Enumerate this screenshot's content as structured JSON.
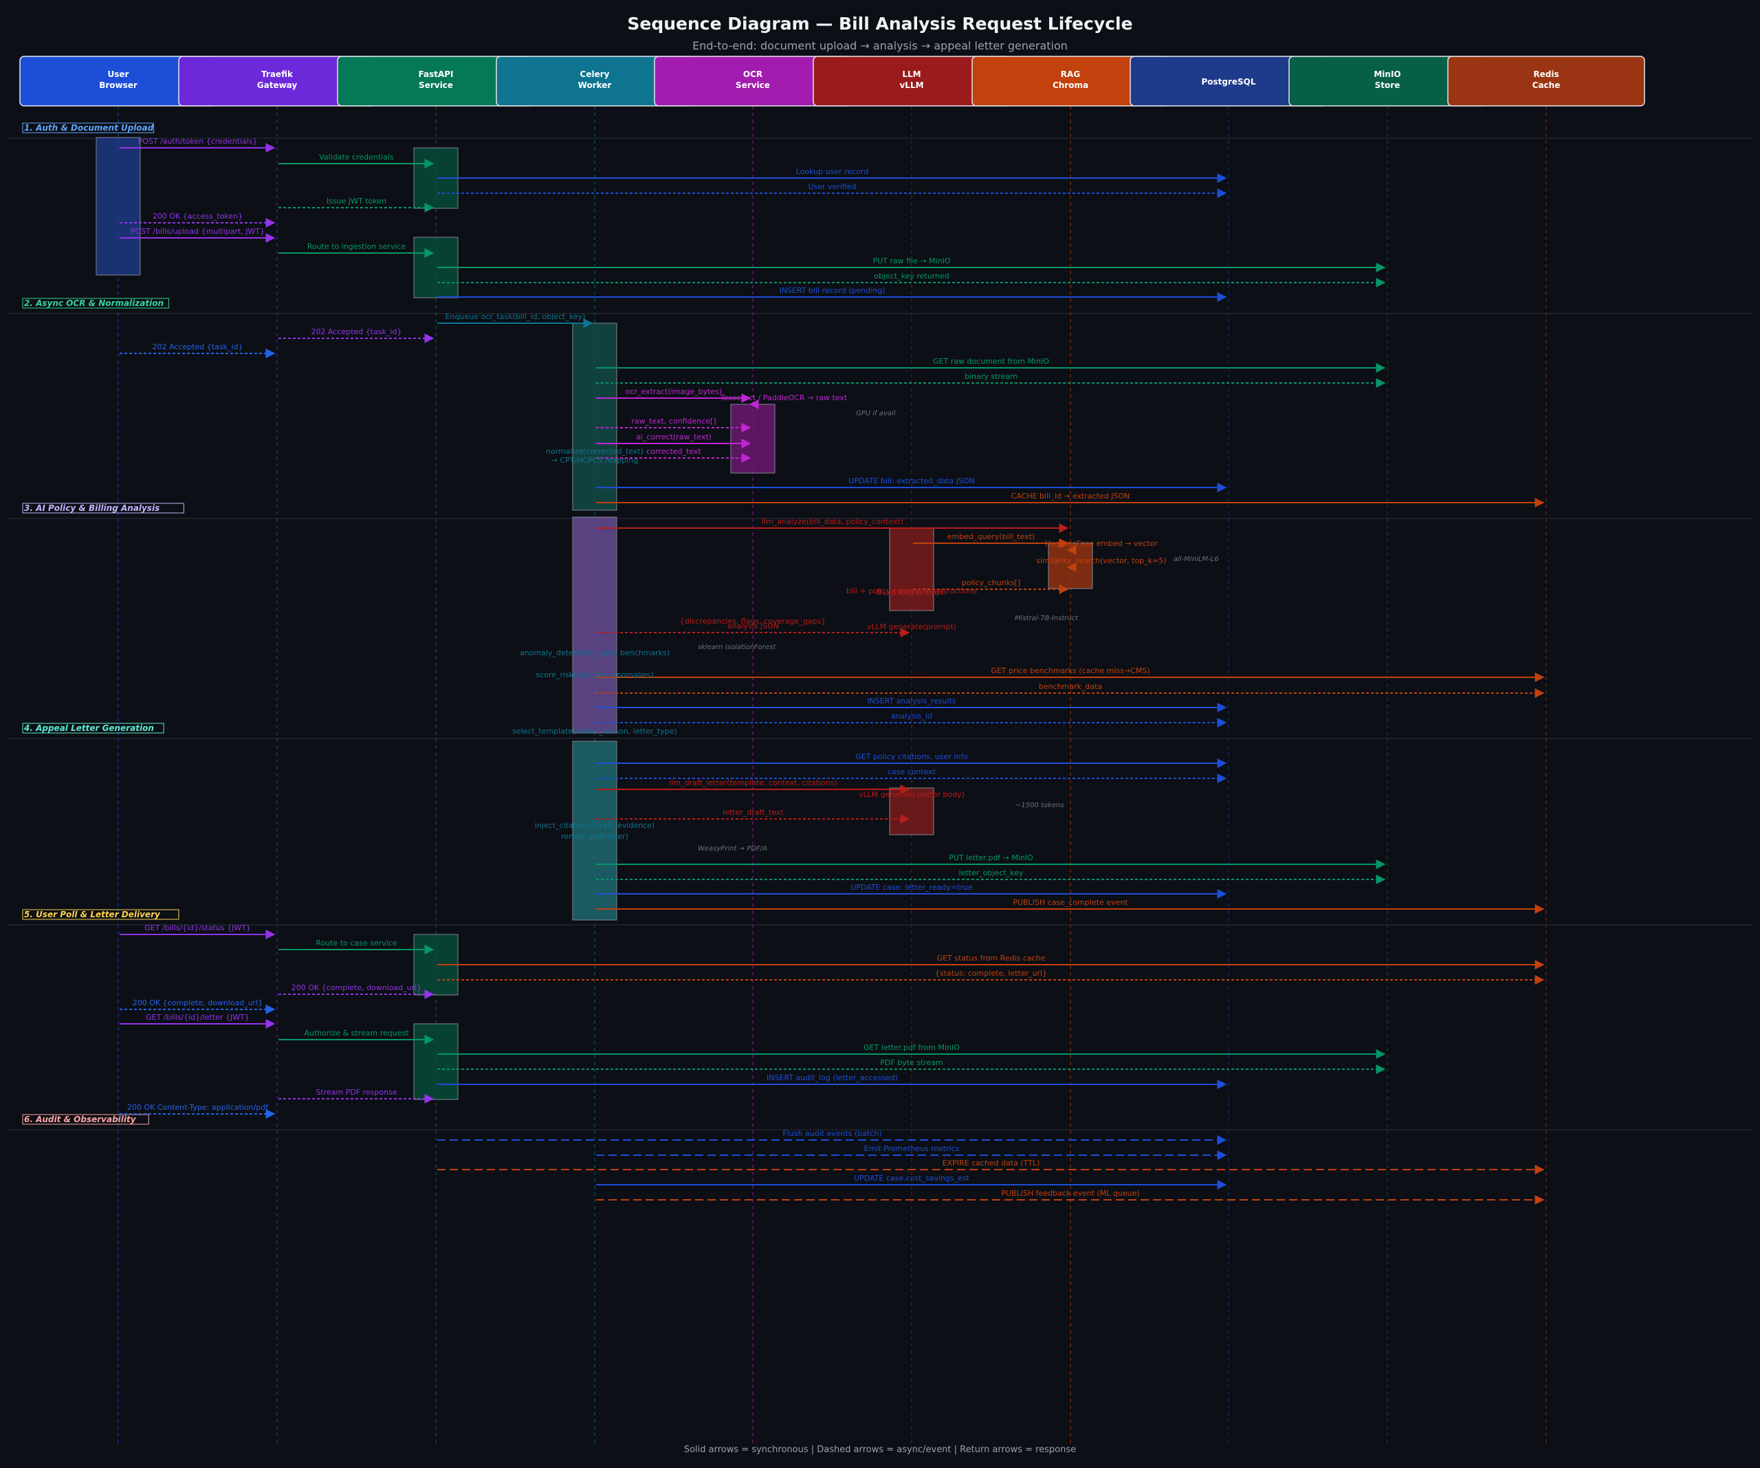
{
  "title": "Sequence Diagram — Bill Analysis Request Lifecycle",
  "subtitle": "End-to-end: document upload → analysis → appeal letter generation",
  "legend": "Solid arrows = synchronous  |  Dashed arrows = async/event  |  Return arrows = response",
  "participants": [
    {
      "id": "user",
      "lines": [
        "User",
        "Browser"
      ],
      "color": "#1d4ed8"
    },
    {
      "id": "traefik",
      "lines": [
        "Traefik",
        "Gateway"
      ],
      "color": "#6d28d9"
    },
    {
      "id": "fastapi",
      "lines": [
        "FastAPI",
        "Service"
      ],
      "color": "#047857"
    },
    {
      "id": "celery",
      "lines": [
        "Celery",
        "Worker"
      ],
      "color": "#0e7490"
    },
    {
      "id": "ocr",
      "lines": [
        "OCR",
        "Service"
      ],
      "color": "#a21caf"
    },
    {
      "id": "llm",
      "lines": [
        "LLM",
        "vLLM"
      ],
      "color": "#991b1b"
    },
    {
      "id": "rag",
      "lines": [
        "RAG",
        "Chroma"
      ],
      "color": "#c2410c"
    },
    {
      "id": "pg",
      "lines": [
        "PostgreSQL"
      ],
      "color": "#1e3a8a"
    },
    {
      "id": "minio",
      "lines": [
        "MinIO",
        "Store"
      ],
      "color": "#065f46"
    },
    {
      "id": "redis",
      "lines": [
        "Redis",
        "Cache"
      ],
      "color": "#9a3412"
    }
  ],
  "sections": [
    {
      "label": "1. Auth & Document Upload",
      "color": "#60a5fa"
    },
    {
      "label": "2. Async OCR & Normalization",
      "color": "#34d399"
    },
    {
      "label": "3. AI Policy & Billing Analysis",
      "color": "#c4b5fd"
    },
    {
      "label": "4. Appeal Letter Generation",
      "color": "#5eead4"
    },
    {
      "label": "5. User Poll & Letter Delivery",
      "color": "#fcd34d"
    },
    {
      "label": "6. Audit & Observability",
      "color": "#fca5a5"
    }
  ],
  "messages": [
    {
      "from": "user",
      "to": "traefik",
      "label": "POST /auth/token  {credentials}",
      "style": "solid",
      "color": "#9333ea"
    },
    {
      "from": "traefik",
      "to": "fastapi",
      "label": "Validate credentials",
      "style": "solid",
      "color": "#059669"
    },
    {
      "from": "fastapi",
      "to": "pg",
      "label": "Lookup user record",
      "style": "solid",
      "color": "#1d4ed8"
    },
    {
      "from": "fastapi",
      "to": "pg",
      "label": "User verified",
      "style": "dashed",
      "color": "#1d4ed8"
    },
    {
      "from": "traefik",
      "to": "fastapi",
      "label": "Issue JWT token",
      "style": "dashed",
      "color": "#059669"
    },
    {
      "from": "user",
      "to": "traefik",
      "label": "200 OK  {access_token}",
      "style": "dashed",
      "color": "#9333ea"
    },
    {
      "from": "user",
      "to": "traefik",
      "label": "POST /bills/upload  {multipart, JWT}",
      "style": "solid",
      "color": "#9333ea"
    },
    {
      "from": "traefik",
      "to": "fastapi",
      "label": "Route to ingestion service",
      "style": "solid",
      "color": "#059669"
    },
    {
      "from": "fastapi",
      "to": "minio",
      "label": "PUT raw file → MinIO",
      "style": "solid",
      "color": "#059669"
    },
    {
      "from": "fastapi",
      "to": "minio",
      "label": "object_key returned",
      "style": "dashed",
      "color": "#059669"
    },
    {
      "from": "fastapi",
      "to": "pg",
      "label": "INSERT bill record (pending)",
      "style": "solid",
      "color": "#1d4ed8"
    },
    {
      "from": "fastapi",
      "to": "celery",
      "label": "Enqueue ocr_task(bill_id, object_key)",
      "style": "solid",
      "color": "#0e7490"
    },
    {
      "from": "traefik",
      "to": "fastapi",
      "label": "202 Accepted  {task_id}",
      "style": "dashed",
      "color": "#9333ea"
    },
    {
      "from": "user",
      "to": "traefik",
      "label": "202 Accepted  {task_id}",
      "style": "dashed",
      "color": "#2563eb"
    },
    {
      "from": "celery",
      "to": "minio",
      "label": "GET raw document from MinIO",
      "style": "solid",
      "color": "#059669"
    },
    {
      "from": "celery",
      "to": "minio",
      "label": "binary stream",
      "style": "dashed",
      "color": "#059669"
    },
    {
      "from": "celery",
      "to": "ocr",
      "label": "ocr_extract(image_bytes)",
      "style": "solid",
      "color": "#c026d3"
    },
    {
      "from": "ocr",
      "to": "ocr",
      "label": "Tesseract / PaddleOCR → raw text",
      "style": "solid",
      "color": "#c026d3"
    },
    {
      "from": "celery",
      "to": "ocr",
      "label": "raw_text, confidence[]",
      "style": "dashed",
      "color": "#c026d3"
    },
    {
      "from": "celery",
      "to": "ocr",
      "label": "ai_correct(raw_text)",
      "style": "solid",
      "color": "#c026d3"
    },
    {
      "from": "celery",
      "to": "ocr",
      "label": "corrected_text",
      "style": "dashed",
      "color": "#c026d3"
    },
    {
      "from": "celery",
      "to": "celery",
      "label": "normalize(corrected_text)",
      "style": "self",
      "color": "#0e7490"
    },
    {
      "from": "celery",
      "to": "pg",
      "label": "UPDATE bill: extracted_data JSON",
      "style": "solid",
      "color": "#1d4ed8"
    },
    {
      "from": "celery",
      "to": "redis",
      "label": "CACHE bill_id → extracted JSON",
      "style": "solid",
      "color": "#c2410c"
    },
    {
      "from": "celery",
      "to": "rag",
      "label": "llm_analyze(bill_data, policy_context)",
      "style": "solid",
      "color": "#b91c1c"
    },
    {
      "from": "llm",
      "to": "rag",
      "label": "embed_query(bill_text)",
      "style": "solid",
      "color": "#c2410c"
    },
    {
      "from": "rag",
      "to": "rag",
      "label": "HuggingFace embed → vector",
      "style": "solid",
      "color": "#c2410c"
    },
    {
      "from": "rag",
      "to": "rag",
      "label": "similarity_search(vector, top_k=5)",
      "style": "solid",
      "color": "#c2410c"
    },
    {
      "from": "llm",
      "to": "rag",
      "label": "policy_chunks[]",
      "style": "dashed",
      "color": "#c2410c"
    },
    {
      "from": "llm",
      "to": "llm",
      "label": "Build RAG prompt:",
      "style": "self",
      "color": "#b91c1c"
    },
    {
      "from": "llm",
      "to": "llm",
      "label": "vLLM generate(prompt)",
      "style": "self",
      "color": "#b91c1c"
    },
    {
      "from": "celery",
      "to": "llm",
      "label": "analysis JSON",
      "style": "dashed",
      "color": "#b91c1c"
    },
    {
      "from": "celery",
      "to": "celery",
      "label": "anomaly_detect(bill_data, benchmarks)",
      "style": "self",
      "color": "#0e7490"
    },
    {
      "from": "celery",
      "to": "redis",
      "label": "GET price benchmarks (cache miss→CMS)",
      "style": "solid",
      "color": "#c2410c"
    },
    {
      "from": "celery",
      "to": "redis",
      "label": "benchmark_data",
      "style": "dashed",
      "color": "#c2410c"
    },
    {
      "from": "celery",
      "to": "celery",
      "label": "score_risk(analysis, anomalies)",
      "style": "self",
      "color": "#0e7490"
    },
    {
      "from": "celery",
      "to": "pg",
      "label": "INSERT analysis_results",
      "style": "solid",
      "color": "#1d4ed8"
    },
    {
      "from": "celery",
      "to": "pg",
      "label": "analysis_id",
      "style": "dashed",
      "color": "#1d4ed8"
    },
    {
      "from": "celery",
      "to": "celery",
      "label": "select_template(denial_reason, letter_type)",
      "style": "self",
      "color": "#0e7490"
    },
    {
      "from": "celery",
      "to": "pg",
      "label": "GET policy citations, user info",
      "style": "solid",
      "color": "#1d4ed8"
    },
    {
      "from": "celery",
      "to": "pg",
      "label": "case context",
      "style": "dashed",
      "color": "#1d4ed8"
    },
    {
      "from": "celery",
      "to": "llm",
      "label": "llm_draft_letter(template, context, citations)",
      "style": "solid",
      "color": "#b91c1c"
    },
    {
      "from": "llm",
      "to": "llm",
      "label": "vLLM generate (letter body)",
      "style": "self",
      "color": "#b91c1c"
    },
    {
      "from": "celery",
      "to": "llm",
      "label": "letter_draft_text",
      "style": "dashed",
      "color": "#b91c1c"
    },
    {
      "from": "celery",
      "to": "celery",
      "label": "inject_citations(draft, evidence)",
      "style": "self",
      "color": "#0e7490"
    },
    {
      "from": "celery",
      "to": "celery",
      "label": "render_pdf(letter)",
      "style": "self",
      "color": "#0e7490"
    },
    {
      "from": "celery",
      "to": "minio",
      "label": "PUT letter.pdf → MinIO",
      "style": "solid",
      "color": "#059669"
    },
    {
      "from": "celery",
      "to": "minio",
      "label": "letter_object_key",
      "style": "dashed",
      "color": "#059669"
    },
    {
      "from": "celery",
      "to": "pg",
      "label": "UPDATE case: letter_ready=true",
      "style": "solid",
      "color": "#1d4ed8"
    },
    {
      "from": "celery",
      "to": "redis",
      "label": "PUBLISH case_complete event",
      "style": "solid",
      "color": "#c2410c"
    },
    {
      "from": "user",
      "to": "traefik",
      "label": "GET /bills/{id}/status  {JWT}",
      "style": "solid",
      "color": "#9333ea"
    },
    {
      "from": "traefik",
      "to": "fastapi",
      "label": "Route to case service",
      "style": "solid",
      "color": "#059669"
    },
    {
      "from": "fastapi",
      "to": "redis",
      "label": "GET status from Redis cache",
      "style": "solid",
      "color": "#c2410c"
    },
    {
      "from": "fastapi",
      "to": "redis",
      "label": "{status: complete, letter_url}",
      "style": "dashed",
      "color": "#c2410c"
    },
    {
      "from": "traefik",
      "to": "fastapi",
      "label": "200 OK  {complete, download_url}",
      "style": "dashed",
      "color": "#9333ea"
    },
    {
      "from": "user",
      "to": "traefik",
      "label": "200 OK  {complete, download_url}",
      "style": "dashed",
      "color": "#2563eb"
    },
    {
      "from": "user",
      "to": "traefik",
      "label": "GET /bills/{id}/letter  {JWT}",
      "style": "solid",
      "color": "#9333ea"
    },
    {
      "from": "traefik",
      "to": "fastapi",
      "label": "Authorize & stream request",
      "style": "solid",
      "color": "#059669"
    },
    {
      "from": "fastapi",
      "to": "minio",
      "label": "GET letter.pdf from MinIO",
      "style": "solid",
      "color": "#059669"
    },
    {
      "from": "fastapi",
      "to": "minio",
      "label": "PDF byte stream",
      "style": "dashed",
      "color": "#059669"
    },
    {
      "from": "fastapi",
      "to": "pg",
      "label": "INSERT audit_log (letter_accessed)",
      "style": "solid",
      "color": "#1d4ed8"
    },
    {
      "from": "traefik",
      "to": "fastapi",
      "label": "Stream PDF response",
      "style": "dashed",
      "color": "#9333ea"
    },
    {
      "from": "user",
      "to": "traefik",
      "label": "200 OK  Content-Type: application/pdf",
      "style": "dashed",
      "color": "#2563eb"
    },
    {
      "from": "fastapi",
      "to": "pg",
      "label": "Flush audit events (batch)",
      "style": "async",
      "color": "#1d4ed8"
    },
    {
      "from": "celery",
      "to": "pg",
      "label": "Emit Prometheus metrics",
      "style": "async",
      "color": "#1d4ed8"
    },
    {
      "from": "fastapi",
      "to": "redis",
      "label": "EXPIRE cached data (TTL)",
      "style": "async",
      "color": "#c2410c"
    },
    {
      "from": "celery",
      "to": "pg",
      "label": "UPDATE case.cost_savings_est",
      "style": "solid",
      "color": "#1d4ed8"
    },
    {
      "from": "celery",
      "to": "redis",
      "label": "PUBLISH feedback event (ML queue)",
      "style": "async",
      "color": "#c2410c"
    }
  ],
  "labels": [
    {
      "text": "→ CPT/HCPCS mapping",
      "color": "#0e7490"
    },
    {
      "text": "bill + policy context + instructions",
      "color": "#b91c1c"
    },
    {
      "text": "{discrepancies, flags, coverage_gaps}",
      "color": "#b91c1c"
    }
  ],
  "notes": [
    "GPU if avail",
    "all-MiniLM-L6",
    "Mistral-7B-Instruct",
    "sklearn IsolationForest",
    "~1500 tokens",
    "WeasyPrint → PDF/A"
  ]
}
